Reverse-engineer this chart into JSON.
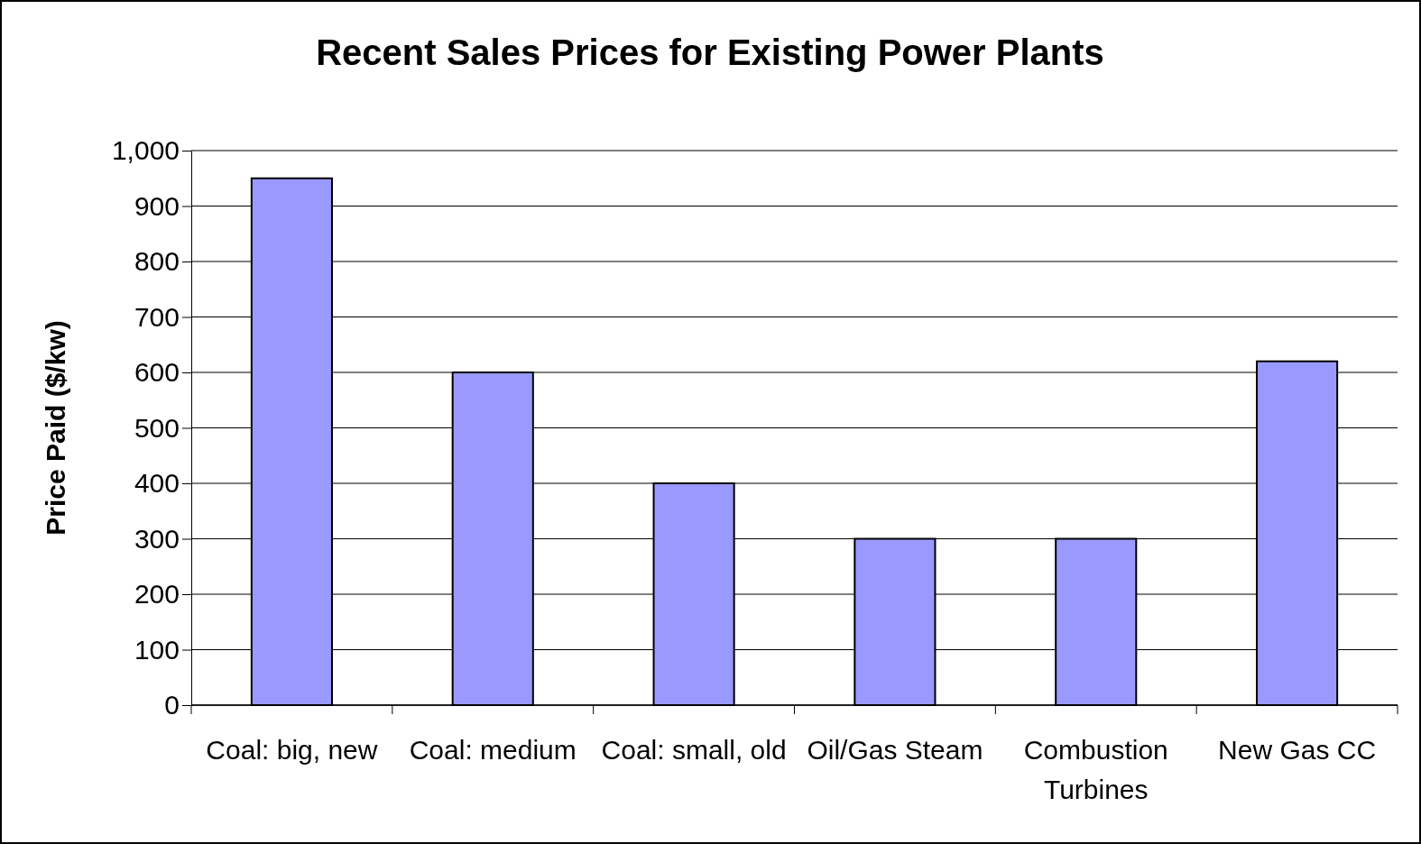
{
  "chart_data": {
    "type": "bar",
    "title": "Recent Sales Prices for Existing Power Plants",
    "ylabel": "Price Paid ($/kw)",
    "categories": [
      "Coal: big, new",
      "Coal: medium",
      "Coal: small, old",
      "Oil/Gas Steam",
      "Combustion Turbines",
      "New Gas CC"
    ],
    "values": [
      950,
      600,
      400,
      300,
      300,
      620
    ],
    "color": "#9999ff",
    "ylim": [
      0,
      1000
    ],
    "yticks": [
      0,
      100,
      200,
      300,
      400,
      500,
      600,
      700,
      800,
      900,
      {
        "value": 1000,
        "label": "1,000"
      }
    ],
    "grid": "y"
  }
}
